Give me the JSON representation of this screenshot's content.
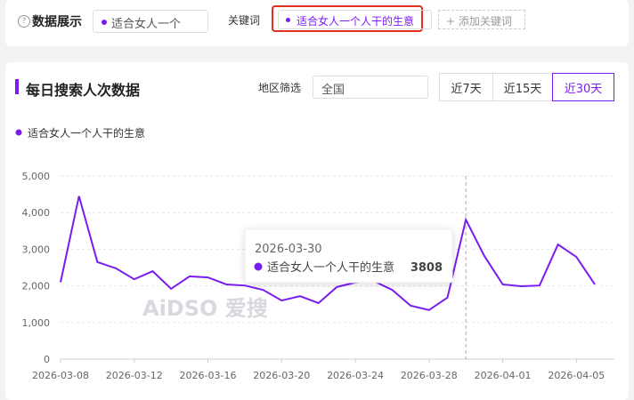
{
  "toolbar": {
    "section_label": "数据展示",
    "select_value": "适合女人一个",
    "keyword_label": "关键词",
    "keyword_tag": "适合女人一个人干的生意",
    "add_button": "+ 添加关键词"
  },
  "panel": {
    "title": "每日搜索人次数据",
    "region_label": "地区筛选",
    "region_value": "全国",
    "ranges": [
      "近7天",
      "近15天",
      "近30天"
    ],
    "active_range": 2,
    "watermark": "AiDSO 爱搜"
  },
  "chart_data": {
    "type": "line",
    "x": [
      "2026-03-08",
      "2026-03-09",
      "2026-03-10",
      "2026-03-11",
      "2026-03-12",
      "2026-03-13",
      "2026-03-14",
      "2026-03-15",
      "2026-03-16",
      "2026-03-17",
      "2026-03-18",
      "2026-03-19",
      "2026-03-20",
      "2026-03-21",
      "2026-03-22",
      "2026-03-23",
      "2026-03-24",
      "2026-03-25",
      "2026-03-26",
      "2026-03-27",
      "2026-03-28",
      "2026-03-29",
      "2026-03-30",
      "2026-03-31",
      "2026-04-01",
      "2026-04-02",
      "2026-04-03",
      "2026-04-04",
      "2026-04-05",
      "2026-04-06"
    ],
    "series": [
      {
        "name": "适合女人一个人干的生意",
        "color": "#7a1cf0",
        "values": [
          2100,
          4450,
          2650,
          2480,
          2180,
          2400,
          1920,
          2260,
          2230,
          2040,
          2010,
          1890,
          1600,
          1720,
          1530,
          1970,
          2090,
          2130,
          1890,
          1460,
          1340,
          1680,
          3808,
          2820,
          2040,
          1990,
          2010,
          3130,
          2790,
          2040
        ]
      }
    ],
    "ylim": [
      0,
      5000
    ],
    "yticks": [
      0,
      {
        "value": 1000,
        "label": "1,000"
      },
      {
        "value": 2000,
        "label": "2,000"
      },
      {
        "value": 3000,
        "label": "3,000"
      },
      {
        "value": 4000,
        "label": "4,000"
      },
      {
        "value": 5000,
        "label": "5,000"
      }
    ],
    "xtick_index": [
      0,
      4,
      8,
      12,
      16,
      20,
      24,
      28
    ],
    "tooltip_index": 22,
    "grid": true
  }
}
